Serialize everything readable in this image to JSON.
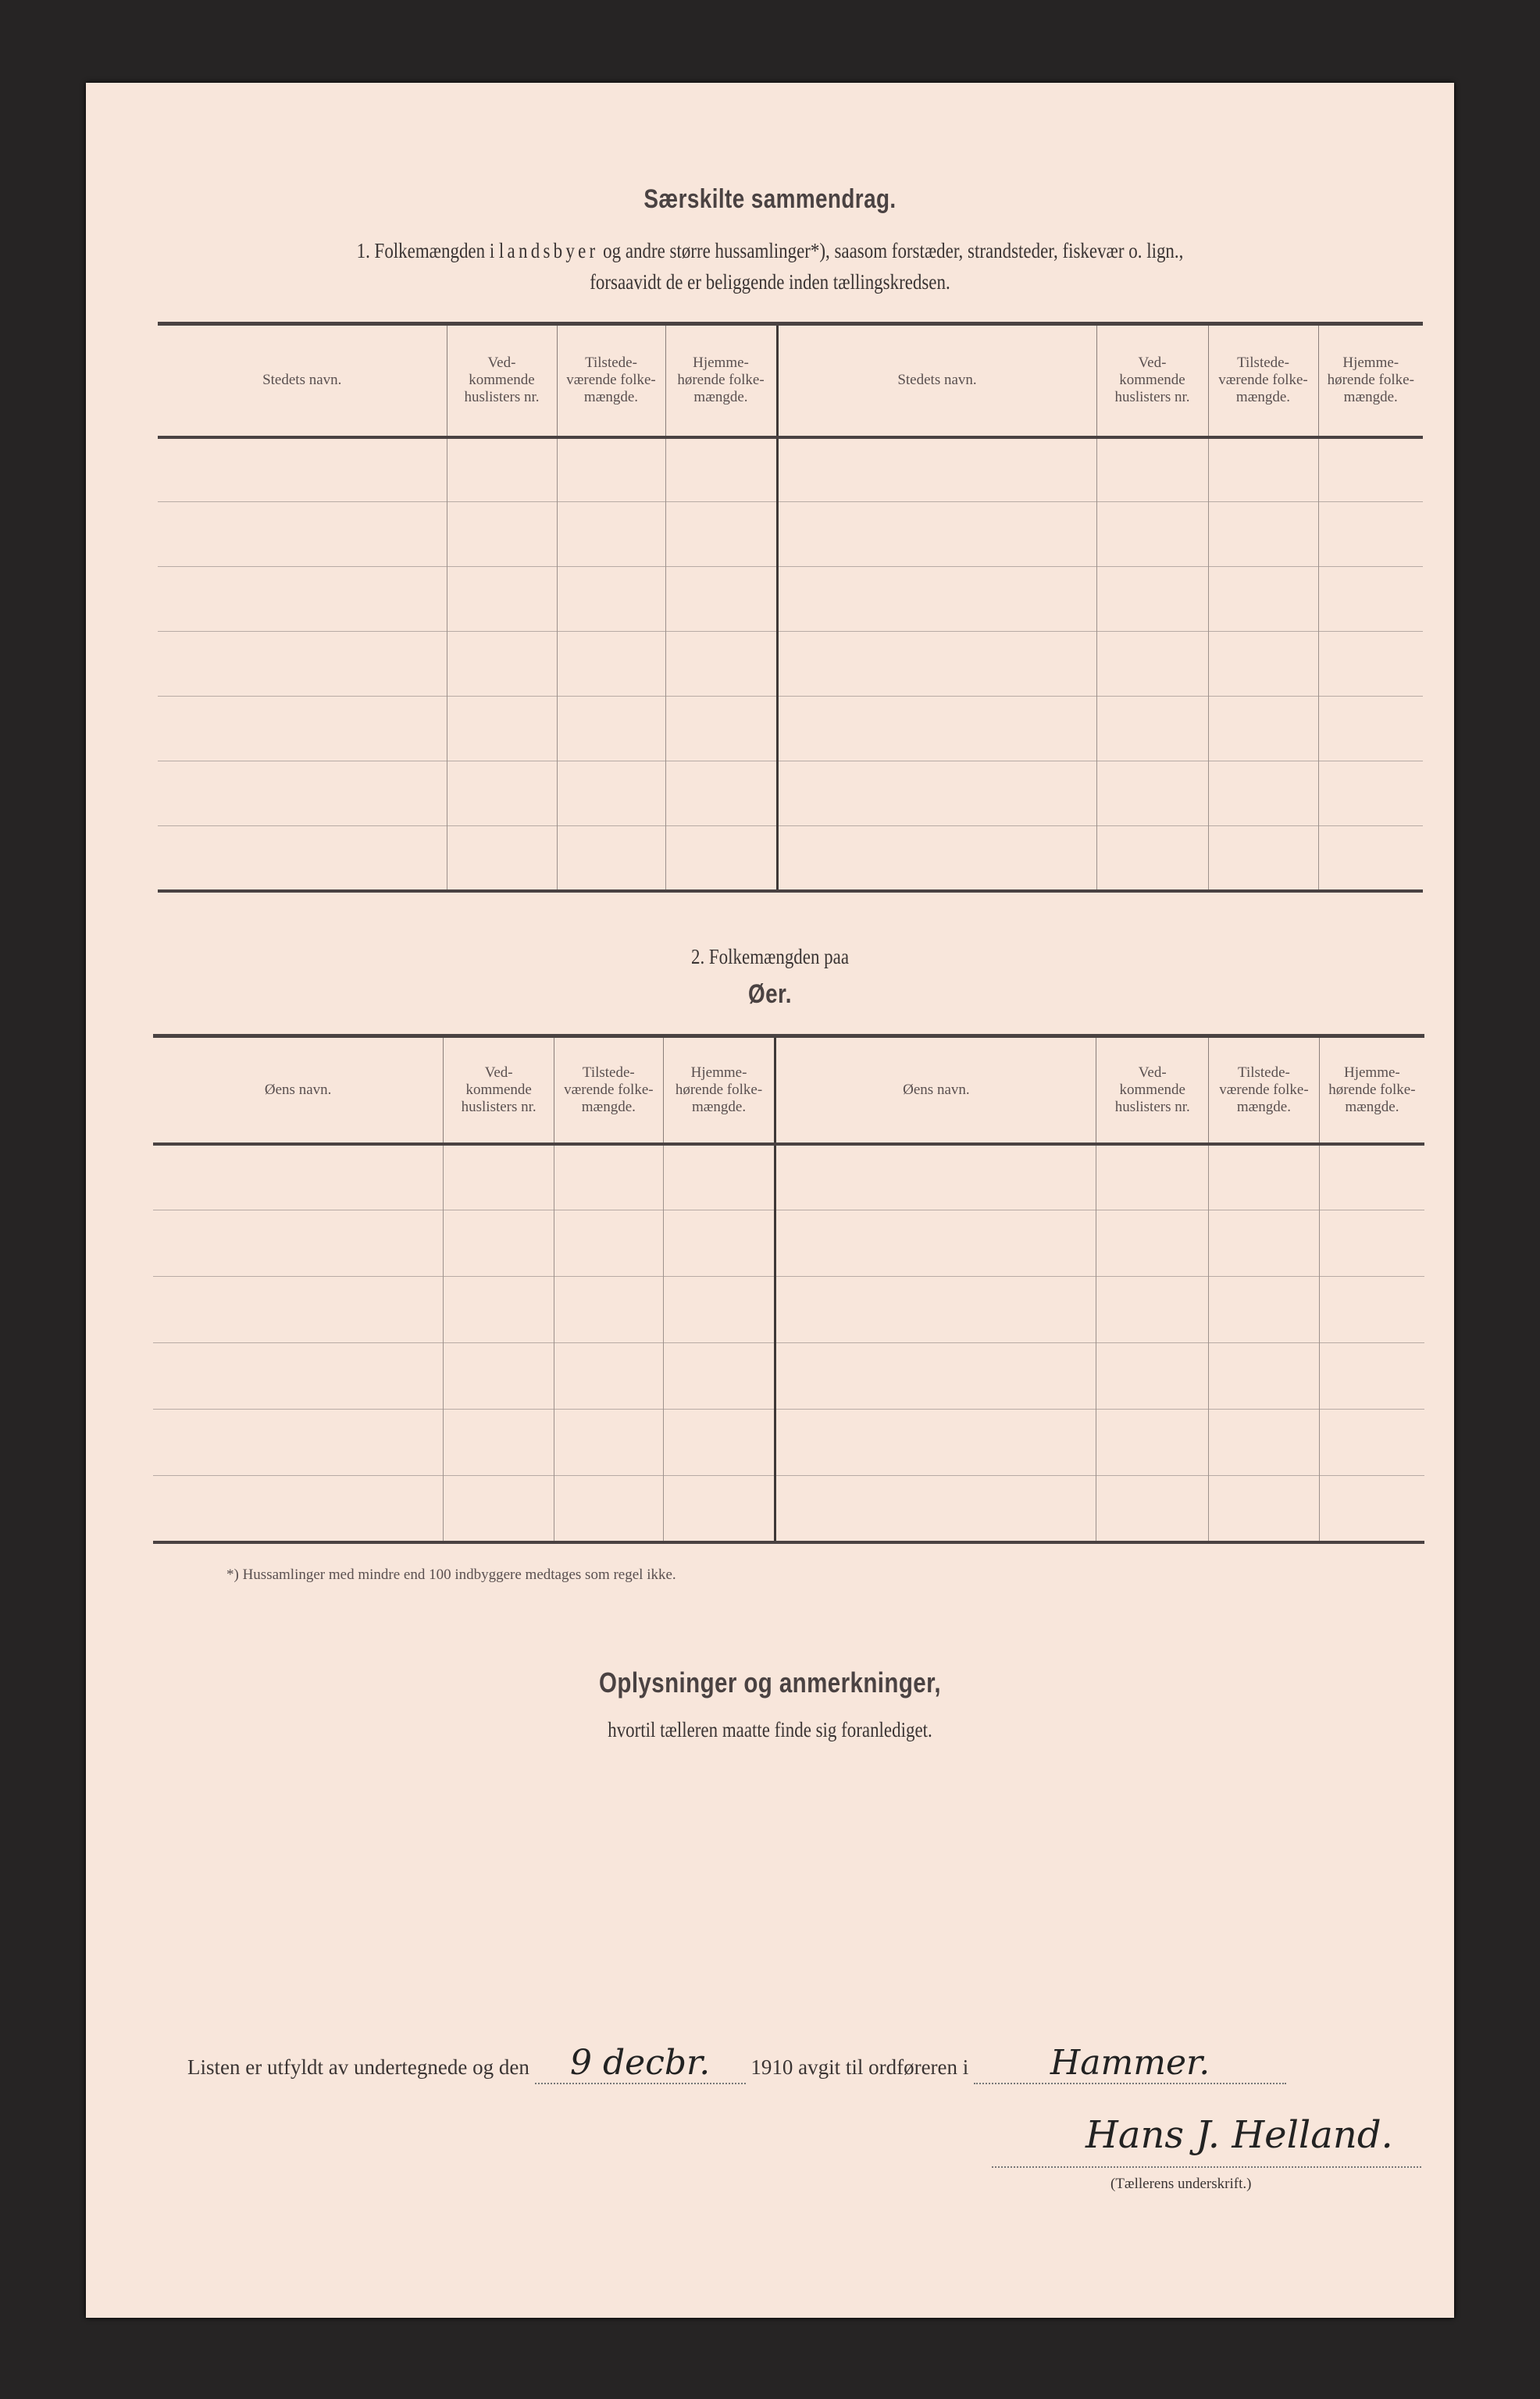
{
  "title": "Særskilte sammendrag.",
  "section1": {
    "line1_a": "1. Folkemængden i",
    "line1_spaced": "landsbyer",
    "line1_b": "og andre større hussamlinger*), saasom forstæder, strandsteder, fiskevær o. lign.,",
    "line2": "forsaavidt de er beliggende inden tællingskredsen.",
    "headers": [
      "Stedets navn.",
      "Ved-kommende huslisters nr.",
      "Tilstede-værende folke-mængde.",
      "Hjemme-hørende folke-mængde.",
      "Stedets navn.",
      "Ved-kommende huslisters nr.",
      "Tilstede-værende folke-mængde.",
      "Hjemme-hørende folke-mængde."
    ]
  },
  "section2": {
    "line1": "2. Folkemængden paa",
    "line2": "Øer.",
    "headers": [
      "Øens navn.",
      "Ved-kommende huslisters nr.",
      "Tilstede-værende folke-mængde.",
      "Hjemme-hørende folke-mængde.",
      "Øens navn.",
      "Ved-kommende huslisters nr.",
      "Tilstede-værende folke-mængde.",
      "Hjemme-hørende folke-mængde."
    ]
  },
  "footnote": "*) Hussamlinger med mindre end 100 indbyggere medtages som regel ikke.",
  "remarks": {
    "title": "Oplysninger og anmerkninger,",
    "subtitle": "hvortil tælleren maatte finde sig foranlediget."
  },
  "signoff": {
    "prefix": "Listen er utfyldt av undertegnede og den",
    "date_handwritten": "9 decbr.",
    "year": "1910",
    "middle": "avgit til ordføreren i",
    "municipality_handwritten": "Hammer.",
    "signature": "Hans J. Helland.",
    "signature_label": "(Tællerens underskrift.)"
  }
}
